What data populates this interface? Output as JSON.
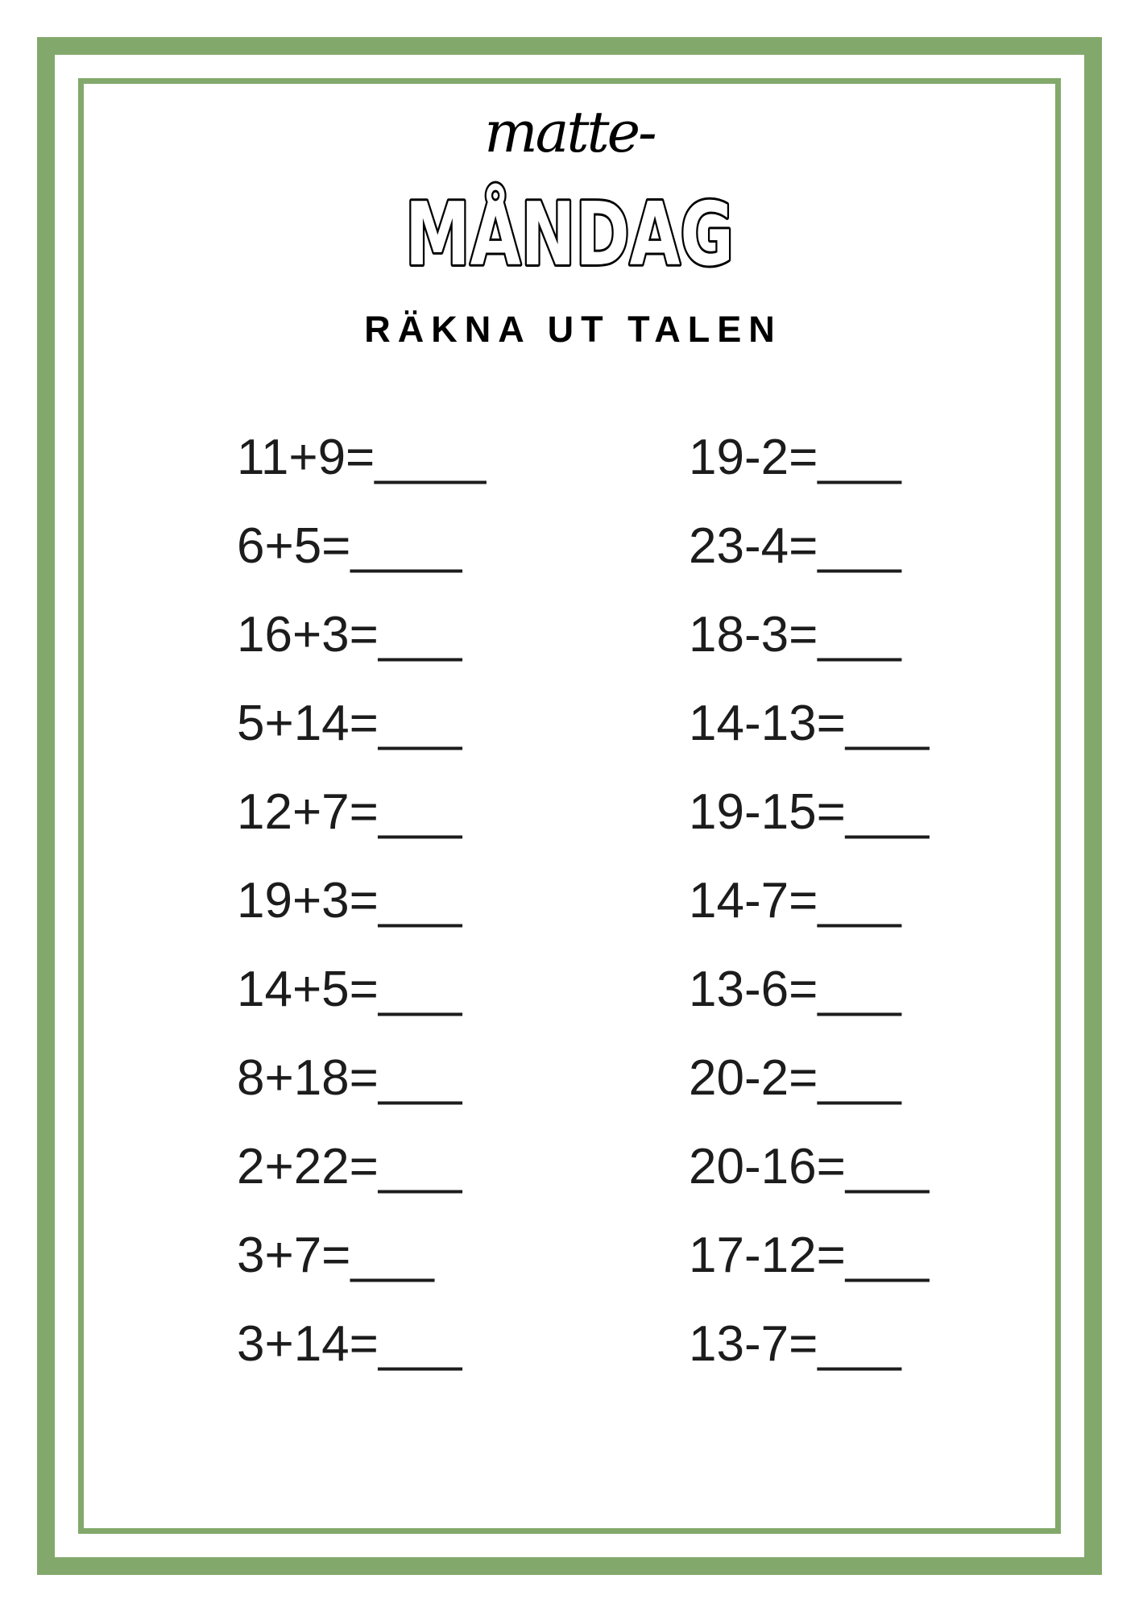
{
  "header": {
    "title_script": "matte-",
    "title_main": "MÅNDAG",
    "subtitle": "RÄKNA UT TALEN"
  },
  "colors": {
    "border_green": "#82A96B",
    "ink": "#1c1c1c"
  },
  "problems": {
    "left": [
      "11+9=____",
      "6+5=____",
      "16+3=___",
      "5+14=___",
      "12+7=___",
      "19+3=___",
      "14+5=___",
      "8+18=___",
      "2+22=___",
      "3+7=___",
      "3+14=___"
    ],
    "right": [
      "19-2=___",
      "23-4=___",
      "18-3=___",
      "14-13=___",
      "19-15=___",
      "14-7=___",
      "13-6=___",
      "20-2=___",
      "20-16=___",
      "17-12=___",
      "13-7=___"
    ]
  }
}
